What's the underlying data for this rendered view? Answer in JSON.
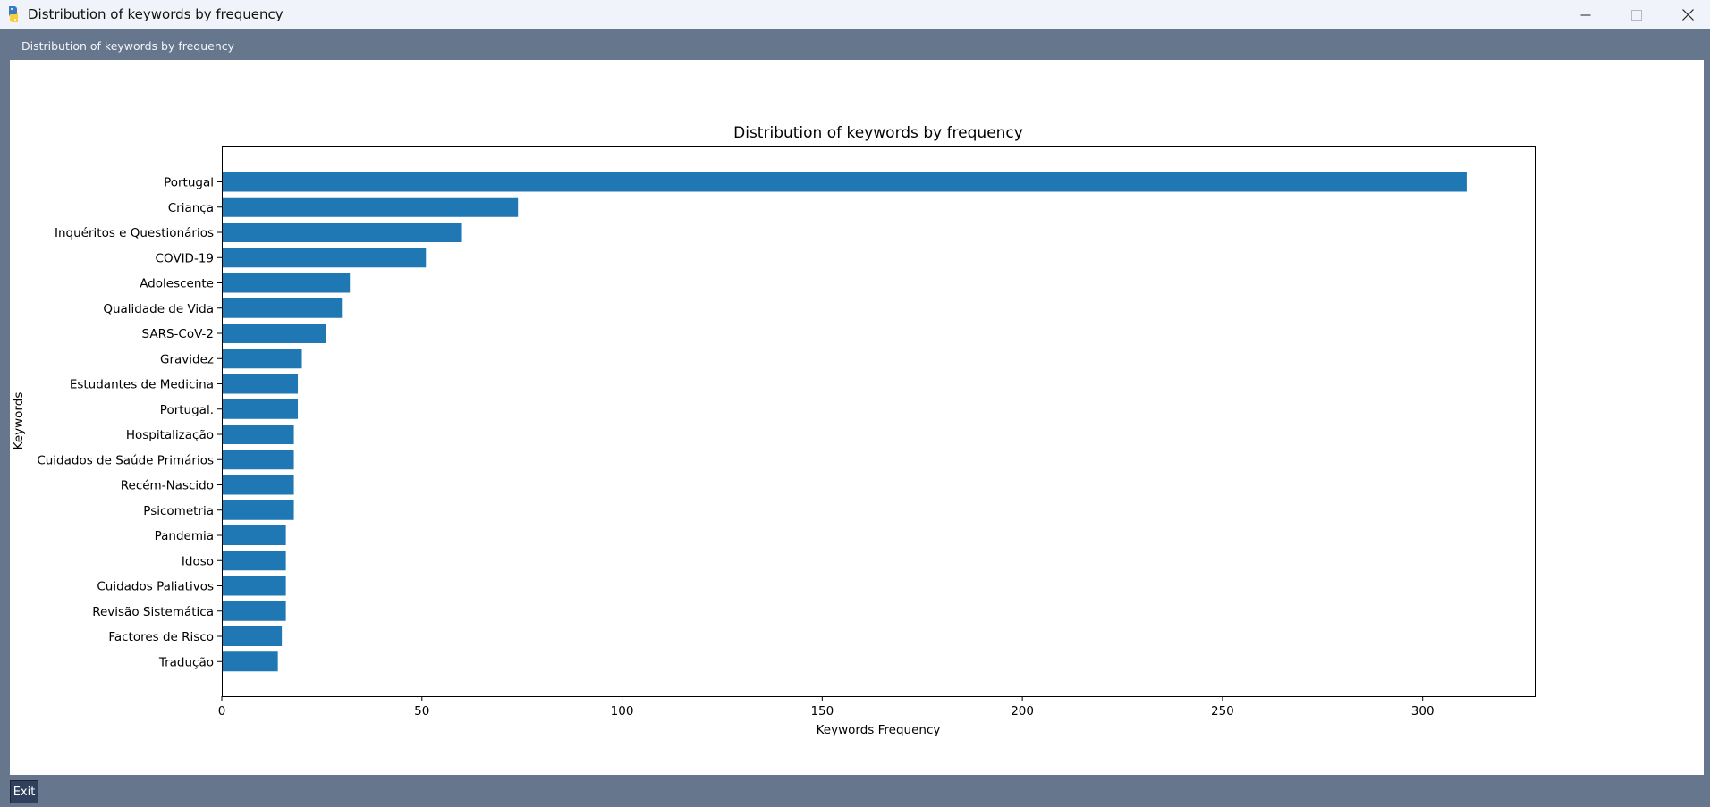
{
  "window": {
    "title": "Distribution of keywords by frequency",
    "panel_label": "Distribution of keywords by frequency"
  },
  "footer": {
    "exit_label": "Exit"
  },
  "icons": {
    "app": "python-logo-icon",
    "minimize": "minimize-icon",
    "maximize": "maximize-icon",
    "close": "close-icon"
  },
  "colors": {
    "bar": "#1f77b4"
  },
  "chart_data": {
    "type": "bar",
    "orientation": "horizontal",
    "title": "Distribution of keywords by frequency",
    "xlabel": "Keywords Frequency",
    "ylabel": "Keywords",
    "xlim": [
      0,
      328
    ],
    "xticks": [
      0,
      50,
      100,
      150,
      200,
      250,
      300
    ],
    "grid": false,
    "categories": [
      "Portugal",
      "Criança",
      "Inquéritos e Questionários",
      "COVID-19",
      "Adolescente",
      "Qualidade de Vida",
      "SARS-CoV-2",
      "Gravidez",
      "Estudantes de Medicina",
      "Portugal.",
      "Hospitalização",
      "Cuidados de Saúde Primários",
      "Recém-Nascido",
      "Psicometria",
      "Pandemia",
      "Idoso",
      "Cuidados Paliativos",
      "Revisão Sistemática",
      "Factores de Risco",
      "Tradução"
    ],
    "values": [
      311,
      74,
      60,
      51,
      32,
      30,
      26,
      20,
      19,
      19,
      18,
      18,
      18,
      18,
      16,
      16,
      16,
      16,
      15,
      14
    ]
  }
}
